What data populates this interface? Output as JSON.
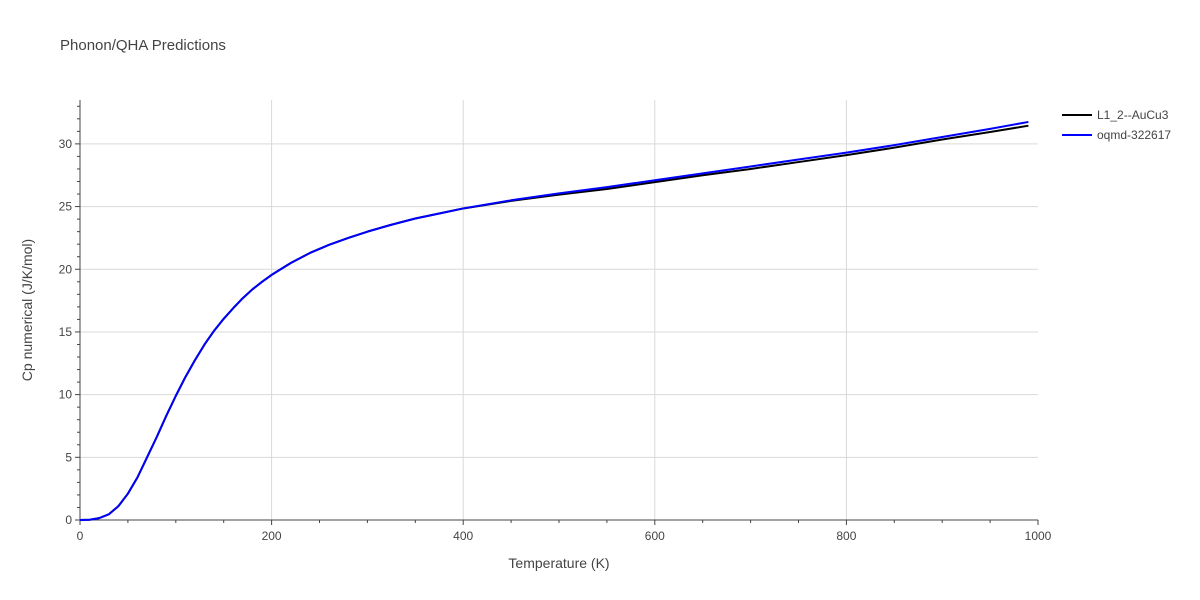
{
  "chart_data": {
    "type": "line",
    "title": "Phonon/QHA Predictions",
    "xlabel": "Temperature (K)",
    "ylabel": "Cp numerical (J/K/mol)",
    "xlim": [
      0,
      1000
    ],
    "ylim": [
      0,
      33.5
    ],
    "xticks": [
      "0",
      "200",
      "400",
      "600",
      "800",
      "1000"
    ],
    "yticks": [
      "0",
      "5",
      "10",
      "15",
      "20",
      "25",
      "30"
    ],
    "grid": true,
    "legend_position": "top-right",
    "series": [
      {
        "name": "L1_2--AuCu3",
        "color": "#000000",
        "x": [
          0,
          10,
          20,
          30,
          40,
          50,
          60,
          70,
          80,
          90,
          100,
          110,
          120,
          130,
          140,
          150,
          160,
          170,
          180,
          190,
          200,
          220,
          240,
          260,
          280,
          300,
          325,
          350,
          375,
          400,
          450,
          500,
          550,
          600,
          650,
          700,
          750,
          800,
          850,
          900,
          950,
          990
        ],
        "y": [
          0,
          0.02,
          0.15,
          0.45,
          1.1,
          2.1,
          3.4,
          5.0,
          6.6,
          8.3,
          9.9,
          11.4,
          12.75,
          14.0,
          15.1,
          16.05,
          16.9,
          17.7,
          18.4,
          19.0,
          19.55,
          20.5,
          21.3,
          21.95,
          22.5,
          23.0,
          23.55,
          24.05,
          24.45,
          24.85,
          25.45,
          25.95,
          26.4,
          26.95,
          27.5,
          28.0,
          28.55,
          29.1,
          29.7,
          30.35,
          30.95,
          31.45
        ]
      },
      {
        "name": "oqmd-322617",
        "color": "#0000ff",
        "x": [
          0,
          10,
          20,
          30,
          40,
          50,
          60,
          70,
          80,
          90,
          100,
          110,
          120,
          130,
          140,
          150,
          160,
          170,
          180,
          190,
          200,
          220,
          240,
          260,
          280,
          300,
          325,
          350,
          375,
          400,
          450,
          500,
          550,
          600,
          650,
          700,
          750,
          800,
          850,
          900,
          950,
          990
        ],
        "y": [
          0,
          0.02,
          0.15,
          0.45,
          1.1,
          2.1,
          3.4,
          5.0,
          6.6,
          8.3,
          9.9,
          11.4,
          12.75,
          14.0,
          15.1,
          16.05,
          16.9,
          17.7,
          18.4,
          19.0,
          19.55,
          20.5,
          21.3,
          21.95,
          22.5,
          23.0,
          23.55,
          24.05,
          24.45,
          24.85,
          25.5,
          26.05,
          26.55,
          27.1,
          27.65,
          28.2,
          28.75,
          29.3,
          29.9,
          30.55,
          31.2,
          31.75
        ]
      }
    ]
  }
}
